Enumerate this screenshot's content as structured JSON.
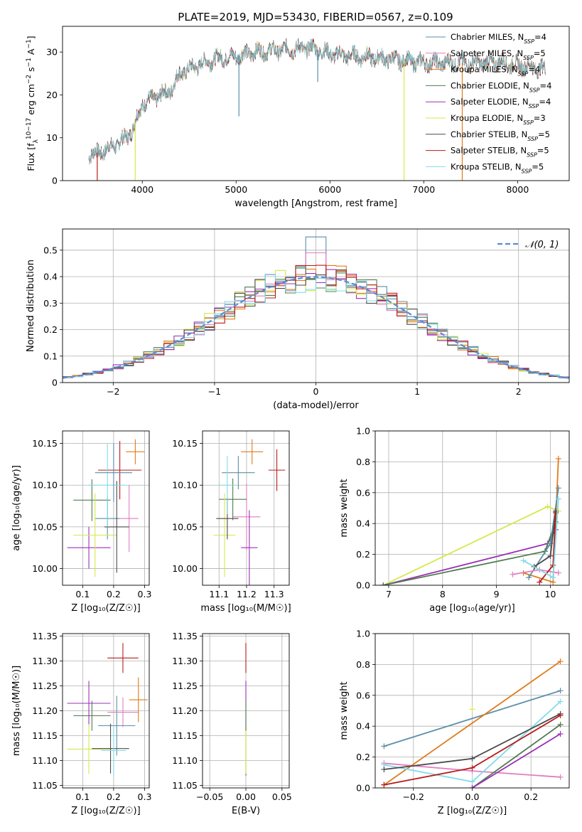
{
  "figure_title": "PLATE=2019, MJD=53430, FIBERID=0567, z=0.109",
  "models": [
    {
      "name": "Chabrier MILES",
      "nssp": "4",
      "color": "#5b8fa8"
    },
    {
      "name": "Salpeter MILES",
      "nssp": "5",
      "color": "#e17dc1"
    },
    {
      "name": "Kroupa MILES",
      "nssp": "4",
      "color": "#e07b1a"
    },
    {
      "name": "Chabrier ELODIE",
      "nssp": "4",
      "color": "#4f7d4f"
    },
    {
      "name": "Salpeter ELODIE",
      "nssp": "4",
      "color": "#9b30b5"
    },
    {
      "name": "Kroupa ELODIE",
      "nssp": "3",
      "color": "#d6e84a"
    },
    {
      "name": "Chabrier STELIB",
      "nssp": "5",
      "color": "#4a4a4a"
    },
    {
      "name": "Salpeter STELIB",
      "nssp": "5",
      "color": "#b71c1c"
    },
    {
      "name": "Kroupa STELIB",
      "nssp": "5",
      "color": "#80dbe8"
    }
  ],
  "chart_data": [
    {
      "id": "spectrum",
      "type": "line",
      "title": "PLATE=2019, MJD=53430, FIBERID=0567, z=0.109",
      "xlabel": "wavelength [Angstrom, rest frame]",
      "ylabel_pre": "Flux [f",
      "ylabel_sub": "λ",
      "ylabel_mid": "10",
      "ylabel_sup": "−17",
      "ylabel_post": " erg cm",
      "ylabel_sup2": "−2",
      "ylabel_post2": " s",
      "ylabel_sup3": "−1",
      "ylabel_post3": " A",
      "ylabel_sup4": "−1",
      "ylabel_end": "]",
      "xlim": [
        3150,
        8550
      ],
      "ylim": [
        0,
        36
      ],
      "xticks": [
        4000,
        5000,
        6000,
        7000,
        8000
      ],
      "yticks": [
        0,
        10,
        20,
        30
      ],
      "continuum": {
        "x": [
          3430,
          3600,
          3800,
          3900,
          4000,
          4150,
          4300,
          4400,
          4600,
          4800,
          5000,
          5200,
          5500,
          5800,
          6000,
          6300,
          6600,
          7000,
          7400,
          7800,
          8300
        ],
        "y": [
          6,
          7,
          9.5,
          12,
          18,
          19.5,
          21,
          25,
          27,
          28.5,
          29,
          30,
          30.5,
          31,
          29.5,
          29,
          28.5,
          27.5,
          27.5,
          27.5,
          26
        ]
      },
      "spikes": [
        {
          "model": "Salpeter STELIB",
          "x": 3520,
          "to": 0
        },
        {
          "model": "Kroupa ELODIE",
          "x": 3925,
          "to": 0
        },
        {
          "model": "Chabrier MILES",
          "x": 5030,
          "to": 15
        },
        {
          "model": "Chabrier MILES",
          "x": 5870,
          "to": 23
        },
        {
          "model": "Kroupa ELODIE",
          "x": 6790,
          "to": 0
        },
        {
          "model": "Kroupa MILES",
          "x": 7410,
          "to": 0
        }
      ]
    },
    {
      "id": "residuals",
      "type": "histogram",
      "xlabel": "(data-model)/error",
      "ylabel": "Normed distribution",
      "xlim": [
        -2.5,
        2.5
      ],
      "ylim": [
        0,
        0.58
      ],
      "xticks": [
        -2,
        -1,
        0,
        1,
        2
      ],
      "yticks": [
        0.0,
        0.1,
        0.2,
        0.3,
        0.4,
        0.5
      ],
      "grid": true,
      "bin_width": 0.1,
      "reference": {
        "label": "𝒩(0, 1)",
        "color": "#5b8ad6"
      },
      "legend_position": "top-right",
      "peak_values": {
        "center": 0.55,
        "secondary": 0.49
      }
    },
    {
      "id": "age_vs_Z",
      "type": "errorbar",
      "xlabel": "Z [log₁₀(Z/Z☉)]",
      "ylabel": "age  [log₁₀(age/yr)]",
      "xlim": [
        0.035,
        0.315
      ],
      "ylim": [
        9.98,
        10.165
      ],
      "xticks": [
        0.1,
        0.2,
        0.3
      ],
      "yticks": [
        10.0,
        10.05,
        10.1,
        10.15
      ],
      "grid": true,
      "points": [
        {
          "model": "Chabrier MILES",
          "x": 0.18,
          "y": 10.06,
          "xerr": 0.04,
          "yerr": 0.025
        },
        {
          "model": "Salpeter MILES",
          "x": 0.25,
          "y": 10.06,
          "xerr": 0.03,
          "yerr": 0.04
        },
        {
          "model": "Kroupa MILES",
          "x": 0.27,
          "y": 10.14,
          "xerr": 0.03,
          "yerr": 0.015
        },
        {
          "model": "Chabrier ELODIE",
          "x": 0.13,
          "y": 10.082,
          "xerr": 0.06,
          "yerr": 0.025
        },
        {
          "model": "Salpeter ELODIE",
          "x": 0.12,
          "y": 10.025,
          "xerr": 0.07,
          "yerr": 0.025
        },
        {
          "model": "Kroupa ELODIE",
          "x": 0.14,
          "y": 10.04,
          "xerr": 0.07,
          "yerr": 0.05
        },
        {
          "model": "Chabrier STELIB",
          "x": 0.21,
          "y": 10.05,
          "xerr": 0.04,
          "yerr": 0.055
        },
        {
          "model": "Salpeter STELIB",
          "x": 0.22,
          "y": 10.118,
          "xerr": 0.07,
          "yerr": 0.035
        },
        {
          "model": "Kroupa STELIB",
          "x": 0.18,
          "y": 10.1,
          "xerr": 0.06,
          "yerr": 0.05
        },
        {
          "model": "Chabrier MILES",
          "x": 0.2,
          "y": 10.115,
          "xerr": 0.06,
          "yerr": 0.035
        }
      ]
    },
    {
      "id": "age_vs_mass",
      "type": "errorbar",
      "xlabel": "mass [log₁₀(M/M☉)]",
      "ylabel": "",
      "xlim": [
        11.04,
        11.355
      ],
      "ylim": [
        9.98,
        10.165
      ],
      "xticks": [
        11.1,
        11.2,
        11.3
      ],
      "yticks": [
        10.0,
        10.05,
        10.1,
        10.15
      ],
      "grid": true,
      "points": [
        {
          "model": "Chabrier MILES",
          "x": 11.17,
          "y": 10.115,
          "xerr": 0.06,
          "yerr": 0.02
        },
        {
          "model": "Salpeter MILES",
          "x": 11.2,
          "y": 10.062,
          "xerr": 0.05,
          "yerr": 0.04
        },
        {
          "model": "Kroupa MILES",
          "x": 11.22,
          "y": 10.14,
          "xerr": 0.04,
          "yerr": 0.015
        },
        {
          "model": "Chabrier ELODIE",
          "x": 11.15,
          "y": 10.083,
          "xerr": 0.05,
          "yerr": 0.025
        },
        {
          "model": "Salpeter ELODIE",
          "x": 11.21,
          "y": 10.025,
          "xerr": 0.03,
          "yerr": 0.045
        },
        {
          "model": "Kroupa ELODIE",
          "x": 11.12,
          "y": 10.04,
          "xerr": 0.04,
          "yerr": 0.05
        },
        {
          "model": "Chabrier STELIB",
          "x": 11.13,
          "y": 10.06,
          "xerr": 0.04,
          "yerr": 0.025
        },
        {
          "model": "Salpeter STELIB",
          "x": 11.31,
          "y": 10.118,
          "xerr": 0.03,
          "yerr": 0.025
        },
        {
          "model": "Kroupa STELIB",
          "x": 11.13,
          "y": 10.1,
          "xerr": 0.03,
          "yerr": 0.035
        }
      ]
    },
    {
      "id": "weight_vs_age",
      "type": "line",
      "xlabel": "age  [log₁₀(age/yr)]",
      "ylabel": "mass weight",
      "xlim": [
        6.75,
        10.35
      ],
      "ylim": [
        0,
        1.0
      ],
      "xticks": [
        7,
        8,
        9,
        10
      ],
      "yticks": [
        0.0,
        0.2,
        0.4,
        0.6,
        0.8,
        1.0
      ],
      "grid": true,
      "series": [
        {
          "model": "Kroupa ELODIE",
          "x": [
            6.9,
            9.95,
            10.15
          ],
          "y": [
            0.0,
            0.51,
            0.48
          ]
        },
        {
          "model": "Salpeter ELODIE",
          "x": [
            6.9,
            9.95,
            10.1
          ],
          "y": [
            0.0,
            0.27,
            0.36
          ]
        },
        {
          "model": "Chabrier ELODIE",
          "x": [
            6.9,
            9.9,
            10.1
          ],
          "y": [
            0.0,
            0.22,
            0.41
          ]
        },
        {
          "model": "Kroupa MILES",
          "x": [
            9.5,
            10.05,
            10.15
          ],
          "y": [
            0.08,
            0.02,
            0.82
          ]
        },
        {
          "model": "Chabrier MILES",
          "x": [
            9.6,
            10.0,
            10.15
          ],
          "y": [
            0.05,
            0.27,
            0.63
          ]
        },
        {
          "model": "Salpeter MILES",
          "x": [
            9.3,
            9.8,
            10.15
          ],
          "y": [
            0.07,
            0.1,
            0.08
          ]
        },
        {
          "model": "Chabrier STELIB",
          "x": [
            9.7,
            10.0,
            10.1
          ],
          "y": [
            0.12,
            0.19,
            0.48
          ]
        },
        {
          "model": "Salpeter STELIB",
          "x": [
            9.8,
            10.05,
            10.1
          ],
          "y": [
            0.02,
            0.13,
            0.47
          ]
        },
        {
          "model": "Kroupa STELIB",
          "x": [
            9.5,
            10.05,
            10.15
          ],
          "y": [
            0.16,
            0.05,
            0.56
          ]
        }
      ]
    },
    {
      "id": "mass_vs_Z",
      "type": "errorbar",
      "xlabel": "Z [log₁₀(Z/Z☉)]",
      "ylabel": "mass [log₁₀(M/M☉)]",
      "xlim": [
        0.035,
        0.315
      ],
      "ylim": [
        11.045,
        11.355
      ],
      "xticks": [
        0.1,
        0.2,
        0.3
      ],
      "yticks": [
        11.05,
        11.1,
        11.15,
        11.2,
        11.25,
        11.3,
        11.35
      ],
      "grid": true,
      "points": [
        {
          "model": "Chabrier MILES",
          "x": 0.21,
          "y": 11.17,
          "xerr": 0.06,
          "yerr": 0.06
        },
        {
          "model": "Salpeter MILES",
          "x": 0.23,
          "y": 11.197,
          "xerr": 0.05,
          "yerr": 0.03
        },
        {
          "model": "Kroupa MILES",
          "x": 0.28,
          "y": 11.222,
          "xerr": 0.03,
          "yerr": 0.045
        },
        {
          "model": "Chabrier ELODIE",
          "x": 0.13,
          "y": 11.19,
          "xerr": 0.06,
          "yerr": 0.03
        },
        {
          "model": "Salpeter ELODIE",
          "x": 0.12,
          "y": 11.215,
          "xerr": 0.07,
          "yerr": 0.045
        },
        {
          "model": "Kroupa ELODIE",
          "x": 0.12,
          "y": 11.123,
          "xerr": 0.07,
          "yerr": 0.05
        },
        {
          "model": "Chabrier STELIB",
          "x": 0.19,
          "y": 11.124,
          "xerr": 0.06,
          "yerr": 0.05
        },
        {
          "model": "Salpeter STELIB",
          "x": 0.23,
          "y": 11.306,
          "xerr": 0.05,
          "yerr": 0.03
        },
        {
          "model": "Kroupa STELIB",
          "x": 0.2,
          "y": 11.12,
          "xerr": 0.04,
          "yerr": 0.05
        }
      ]
    },
    {
      "id": "mass_vs_ebv",
      "type": "errorbar",
      "xlabel": "E(B-V)",
      "ylabel": "",
      "xlim": [
        -0.06,
        0.06
      ],
      "ylim": [
        11.045,
        11.355
      ],
      "xticks": [
        -0.05,
        0.0,
        0.05
      ],
      "yticks": [
        11.05,
        11.1,
        11.15,
        11.2,
        11.25,
        11.3,
        11.35
      ],
      "grid": true,
      "points": [
        {
          "model": "Chabrier STELIB",
          "x": 0.0,
          "y": 11.12,
          "xerr": 0.0,
          "yerr": 0.05
        },
        {
          "model": "Salpeter STELIB",
          "x": 0.0,
          "y": 11.306,
          "xerr": 0.0,
          "yerr": 0.03
        },
        {
          "model": "Salpeter ELODIE",
          "x": 0.0,
          "y": 11.215,
          "xerr": 0.0,
          "yerr": 0.045
        },
        {
          "model": "Kroupa ELODIE",
          "x": 0.0,
          "y": 11.123,
          "xerr": 0.0,
          "yerr": 0.05
        },
        {
          "model": "Chabrier ELODIE",
          "x": 0.0,
          "y": 11.19,
          "xerr": 0.0,
          "yerr": 0.03
        }
      ]
    },
    {
      "id": "weight_vs_Z",
      "type": "line",
      "xlabel": "Z [log₁₀(Z/Z☉)]",
      "ylabel": "mass weight",
      "xlim": [
        -0.33,
        0.33
      ],
      "ylim": [
        0,
        1.0
      ],
      "xticks": [
        -0.2,
        0.0,
        0.2
      ],
      "yticks": [
        0.0,
        0.2,
        0.4,
        0.6,
        0.8,
        1.0
      ],
      "grid": true,
      "series": [
        {
          "model": "Chabrier MILES",
          "x": [
            -0.3,
            0.3
          ],
          "y": [
            0.27,
            0.63
          ]
        },
        {
          "model": "Kroupa MILES",
          "x": [
            -0.3,
            0.3
          ],
          "y": [
            0.02,
            0.82
          ]
        },
        {
          "model": "Salpeter MILES",
          "x": [
            -0.3,
            0.0,
            0.3
          ],
          "y": [
            0.16,
            0.11,
            0.07
          ]
        },
        {
          "model": "Kroupa STELIB",
          "x": [
            -0.3,
            0.0,
            0.3
          ],
          "y": [
            0.15,
            0.04,
            0.56
          ]
        },
        {
          "model": "Chabrier STELIB",
          "x": [
            -0.3,
            0.0,
            0.3
          ],
          "y": [
            0.12,
            0.19,
            0.48
          ]
        },
        {
          "model": "Salpeter STELIB",
          "x": [
            -0.3,
            0.0,
            0.3
          ],
          "y": [
            0.02,
            0.13,
            0.47
          ]
        },
        {
          "model": "Chabrier ELODIE",
          "x": [
            0.0,
            0.3
          ],
          "y": [
            0.0,
            0.41
          ]
        },
        {
          "model": "Salpeter ELODIE",
          "x": [
            0.0,
            0.3
          ],
          "y": [
            0.0,
            0.35
          ]
        },
        {
          "model": "Kroupa ELODIE",
          "x": [
            0.0
          ],
          "y": [
            0.51
          ]
        }
      ]
    }
  ]
}
